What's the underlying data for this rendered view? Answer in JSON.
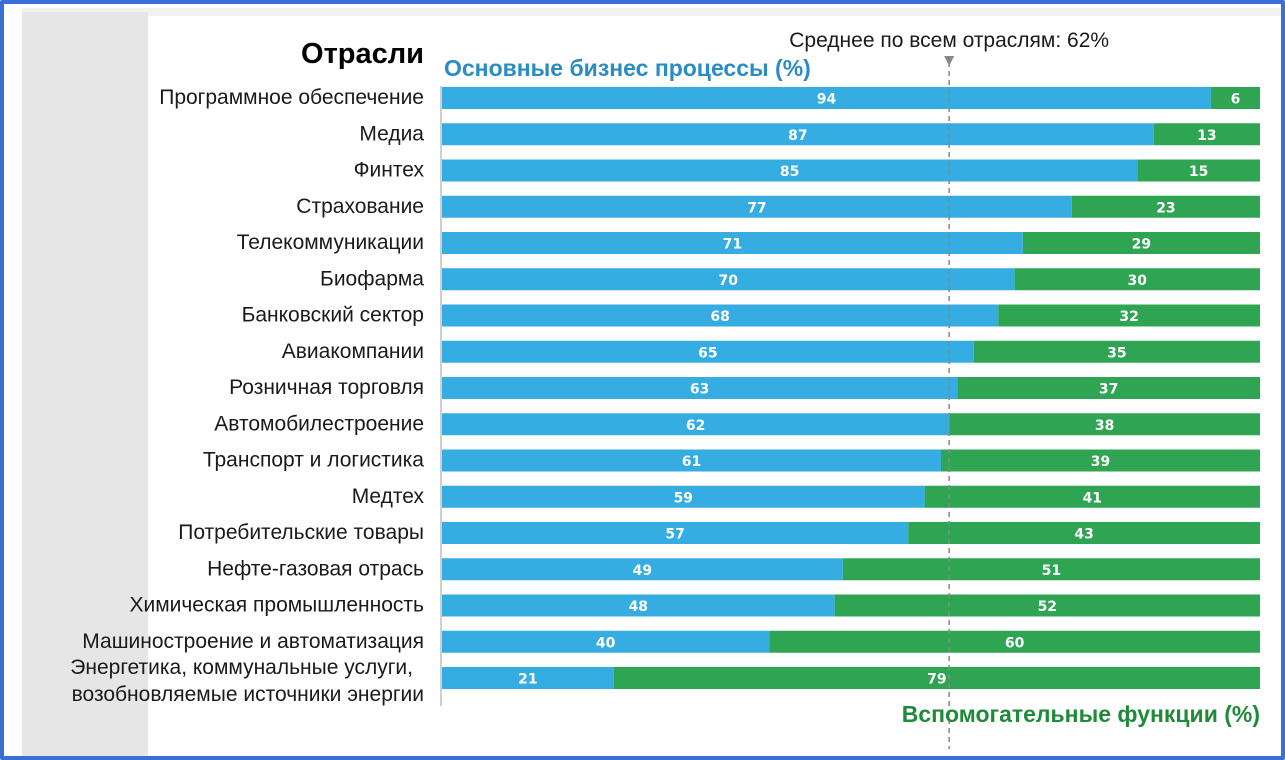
{
  "chart_data": {
    "type": "bar",
    "orientation": "horizontal",
    "stacked": true,
    "categories_title": "Отрасли",
    "average_label": "Среднее по всем отраслям: 62%",
    "average_value": 62,
    "xlim": [
      0,
      100
    ],
    "categories": [
      "Программное обеспечение",
      "Медиа",
      "Финтех",
      "Страхование",
      "Телекоммуникации",
      "Биофарма",
      "Банковский сектор",
      "Авиакомпании",
      "Розничная торговля",
      "Автомобилестроение",
      "Транспорт и логистика",
      "Медтех",
      "Потребительские товары",
      "Нефте-газовая отрась",
      "Химическая промышленность",
      "Машиностроение и автоматизация",
      "Энергетика, коммунальные услуги, возобновляемые источники энергии"
    ],
    "category_lines": [
      [
        "Программное обеспечение"
      ],
      [
        "Медиа"
      ],
      [
        "Финтех"
      ],
      [
        "Страхование"
      ],
      [
        "Телекоммуникации"
      ],
      [
        "Биофарма"
      ],
      [
        "Банковский сектор"
      ],
      [
        "Авиакомпании"
      ],
      [
        "Розничная торговля"
      ],
      [
        "Автомобилестроение"
      ],
      [
        "Транспорт и логистика"
      ],
      [
        "Медтех"
      ],
      [
        "Потребительские товары"
      ],
      [
        "Нефте-газовая отрась"
      ],
      [
        "Химическая промышленность"
      ],
      [
        "Машиностроение и автоматизация"
      ],
      [
        "Энергетика, коммунальные услуги,",
        "возобновляемые источники энергии"
      ]
    ],
    "series": [
      {
        "name": "Основные бизнес процессы (%)",
        "color": "#35ade3",
        "values": [
          94,
          87,
          85,
          77,
          71,
          70,
          68,
          65,
          63,
          62,
          61,
          59,
          57,
          49,
          48,
          40,
          21
        ]
      },
      {
        "name": "Вспомогательные функции (%)",
        "color": "#2fa553",
        "values": [
          6,
          13,
          15,
          23,
          29,
          30,
          32,
          35,
          37,
          38,
          39,
          41,
          43,
          51,
          52,
          60,
          79
        ]
      }
    ],
    "series1_label_color": "#2a8cc4",
    "series2_label_color": "#1f8a3a",
    "average_line_color": "#888888"
  }
}
